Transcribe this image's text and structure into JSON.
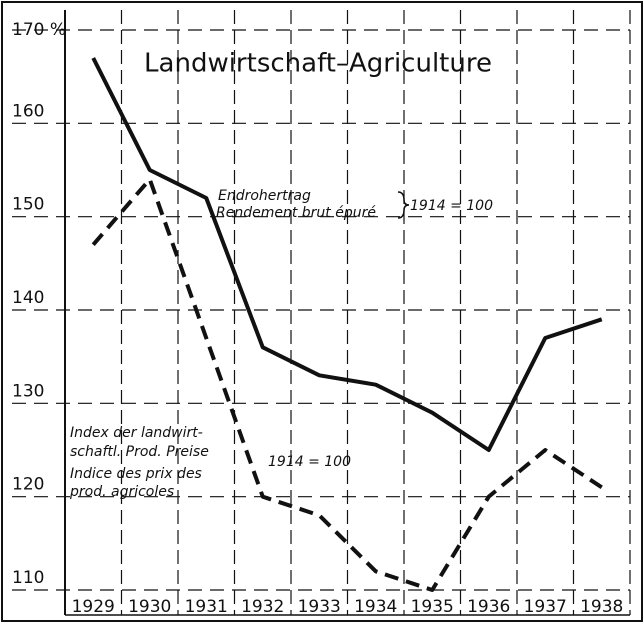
{
  "chart_data": {
    "type": "line",
    "title": "Landwirtschaft–Agriculture",
    "x": [
      "1929",
      "1930",
      "1931",
      "1932",
      "1933",
      "1934",
      "1935",
      "1936",
      "1937",
      "1938"
    ],
    "series": [
      {
        "name": "Endrohertrag",
        "name2": "Rendement brut épuré",
        "base": "1914 = 100",
        "color": "#111111",
        "style": "solid",
        "values": [
          167,
          155,
          152,
          136,
          133,
          132,
          129,
          125,
          137,
          139
        ]
      },
      {
        "name": "Index der landwirt-",
        "name_lines": [
          "schaftl. Prod. Preise",
          "Indice des prix des",
          "prod. agricoles"
        ],
        "base": "1914 = 100",
        "color": "#111111",
        "style": "dashed",
        "values": [
          147,
          154,
          137,
          120,
          118,
          112,
          110,
          120,
          125,
          121
        ]
      }
    ],
    "ylim": [
      110,
      170
    ],
    "yticks": [
      110,
      120,
      130,
      140,
      150,
      160,
      {
        "value": 170,
        "label": "170 %"
      }
    ],
    "grid": true
  }
}
